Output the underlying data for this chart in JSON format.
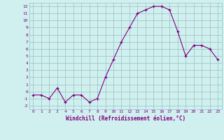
{
  "x": [
    0,
    1,
    2,
    3,
    4,
    5,
    6,
    7,
    8,
    9,
    10,
    11,
    12,
    13,
    14,
    15,
    16,
    17,
    18,
    19,
    20,
    21,
    22,
    23
  ],
  "y": [
    -0.5,
    -0.5,
    -1.0,
    0.5,
    -1.5,
    -0.5,
    -0.5,
    -1.5,
    -1.0,
    2.0,
    4.5,
    7.0,
    9.0,
    11.0,
    11.5,
    12.0,
    12.0,
    11.5,
    8.5,
    5.0,
    6.5,
    6.5,
    6.0,
    4.5
  ],
  "xlabel": "Windchill (Refroidissement éolien,°C)",
  "xlim": [
    -0.5,
    23.5
  ],
  "ylim": [
    -2.5,
    12.5
  ],
  "yticks": [
    -2,
    -1,
    0,
    1,
    2,
    3,
    4,
    5,
    6,
    7,
    8,
    9,
    10,
    11,
    12
  ],
  "xticks": [
    0,
    1,
    2,
    3,
    4,
    5,
    6,
    7,
    8,
    9,
    10,
    11,
    12,
    13,
    14,
    15,
    16,
    17,
    18,
    19,
    20,
    21,
    22,
    23
  ],
  "line_color": "#800080",
  "marker_color": "#800080",
  "bg_color": "#d0f0f0",
  "grid_color": "#a0c8c8",
  "tick_color": "#800080",
  "label_color": "#800080"
}
